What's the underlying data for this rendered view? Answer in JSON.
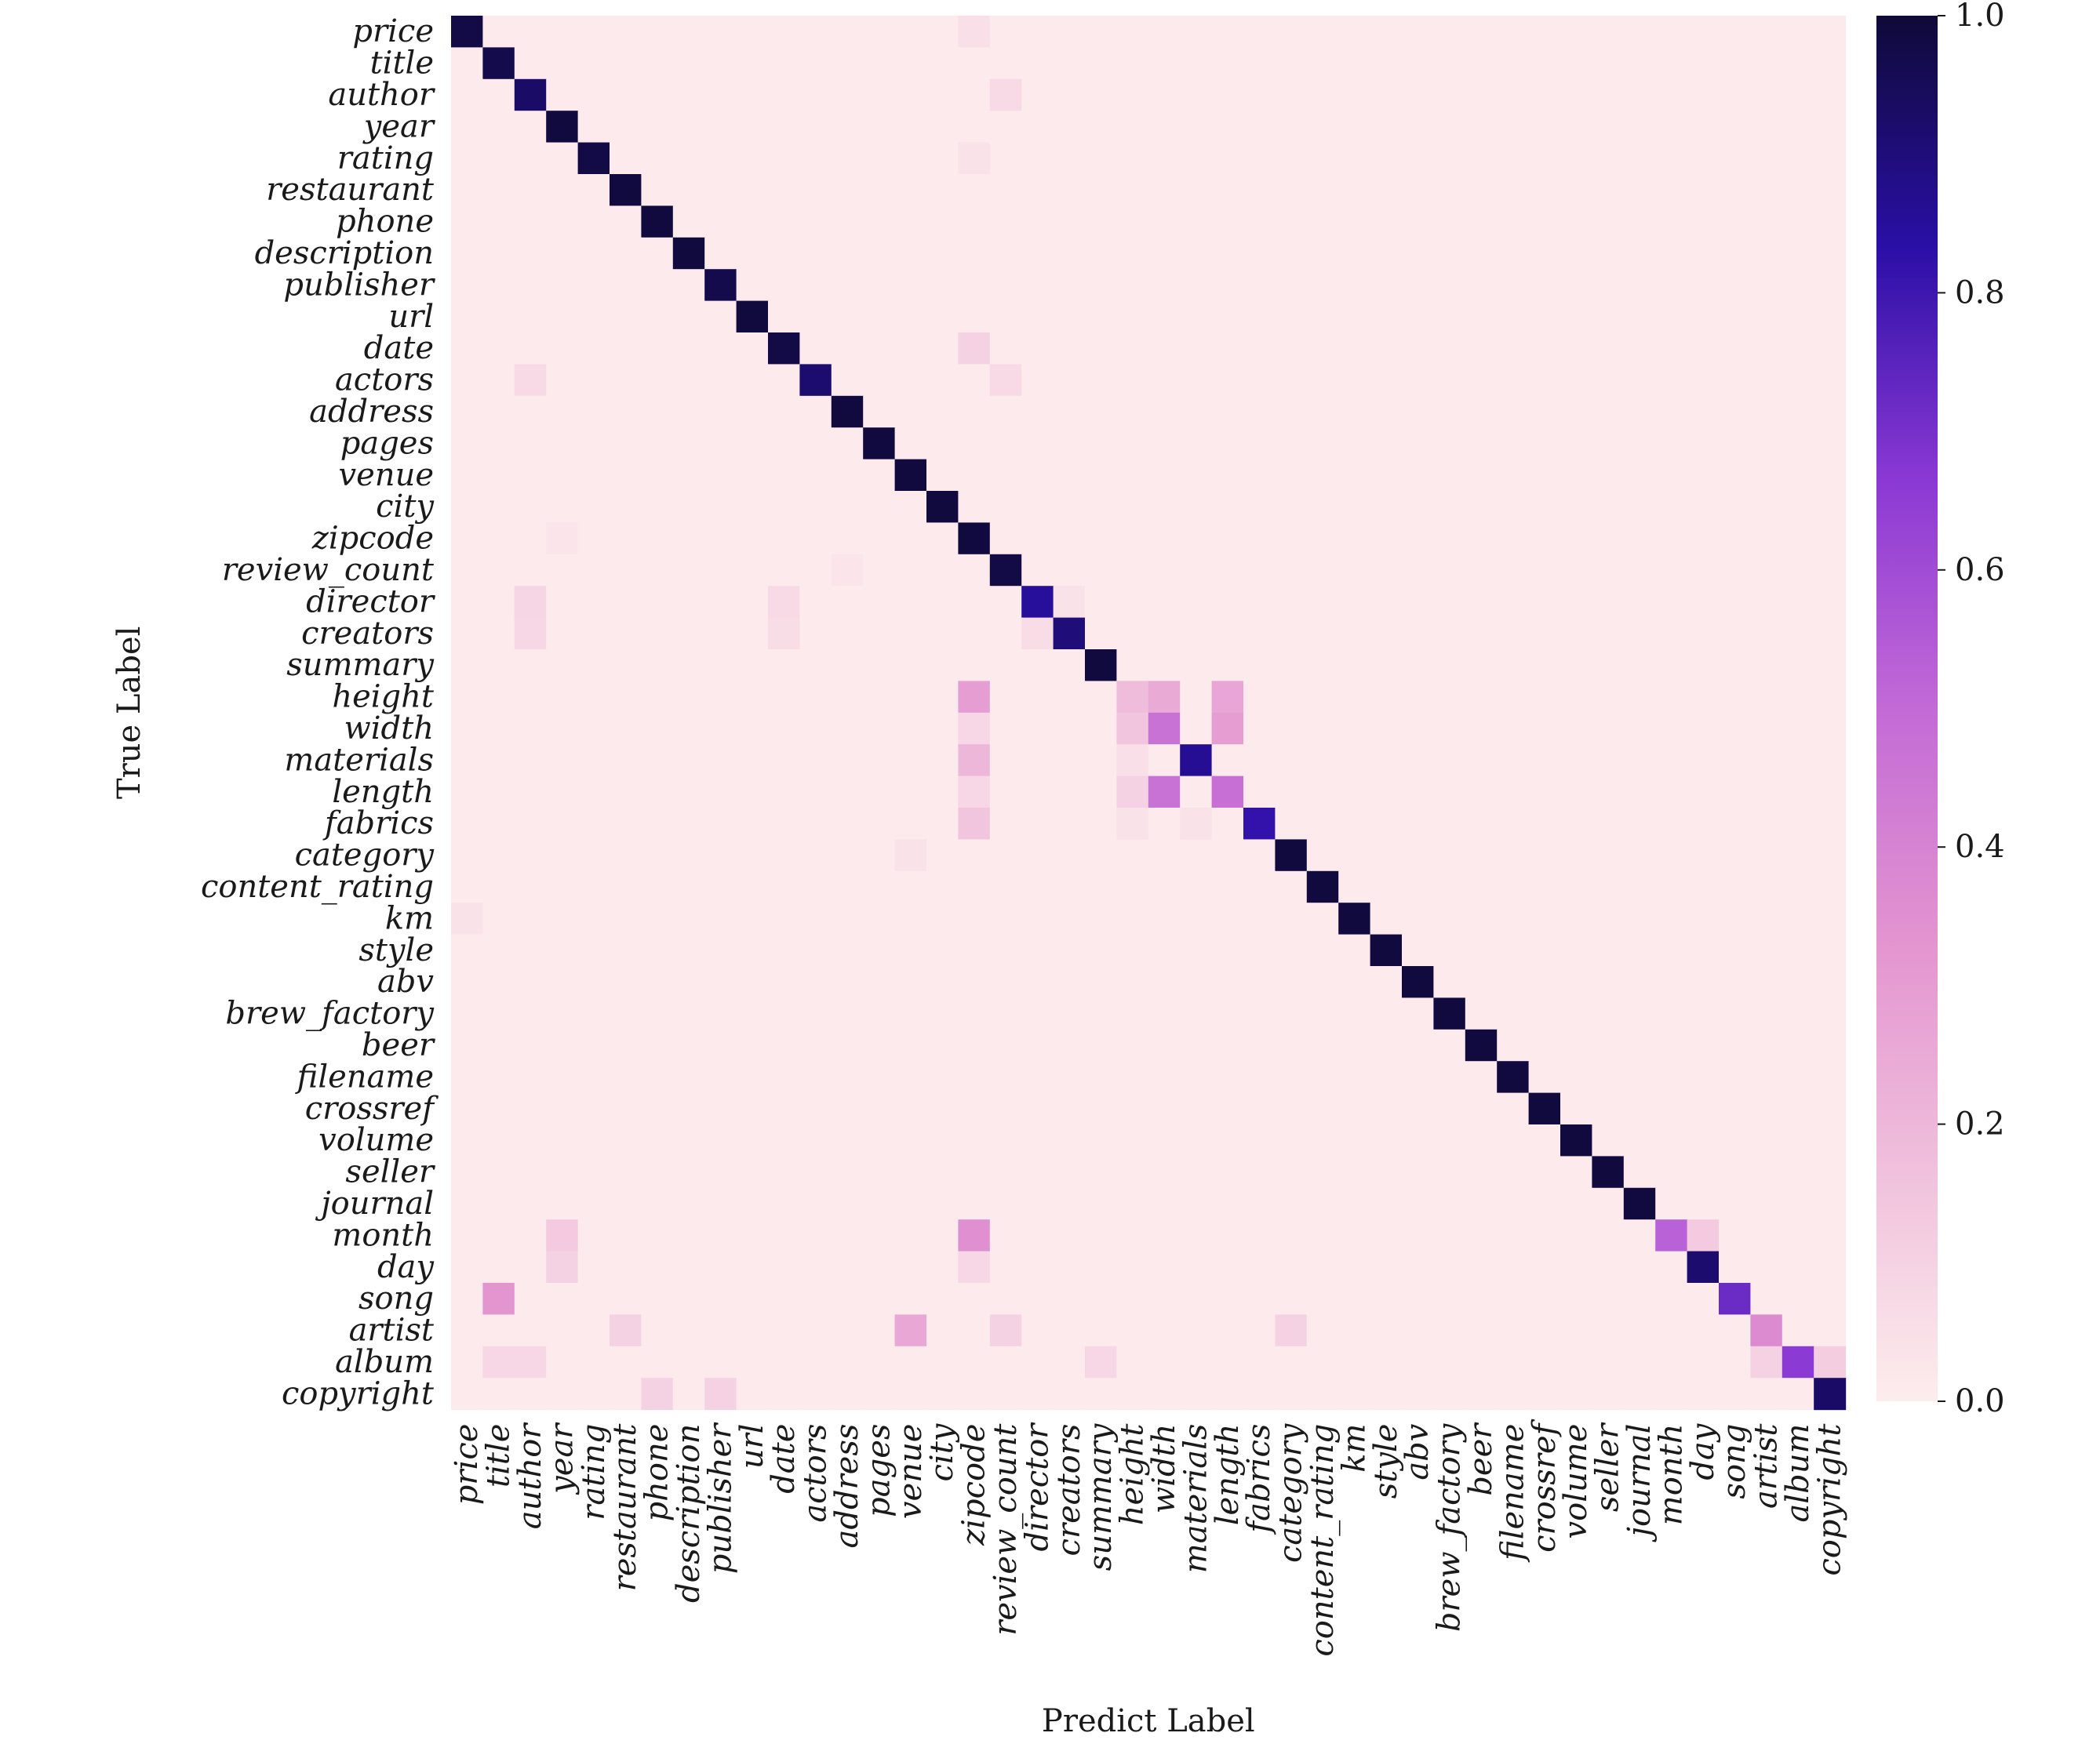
{
  "chart_data": {
    "type": "heatmap",
    "xlabel": "Predict Label",
    "ylabel": "True Label",
    "labels": [
      "price",
      "title",
      "author",
      "year",
      "rating",
      "restaurant",
      "phone",
      "description",
      "publisher",
      "url",
      "date",
      "actors",
      "address",
      "pages",
      "venue",
      "city",
      "zipcode",
      "review_count",
      "director",
      "creators",
      "summary",
      "height",
      "width",
      "materials",
      "length",
      "fabrics",
      "category",
      "content_rating",
      "km",
      "style",
      "abv",
      "brew_factory",
      "beer",
      "filename",
      "crossref",
      "volume",
      "seller",
      "journal",
      "month",
      "day",
      "song",
      "artist",
      "album",
      "copyright"
    ],
    "cells": [
      [
        0,
        0,
        0.98
      ],
      [
        1,
        1,
        0.97
      ],
      [
        2,
        2,
        0.93
      ],
      [
        3,
        3,
        0.99
      ],
      [
        4,
        4,
        0.98
      ],
      [
        5,
        5,
        0.99
      ],
      [
        6,
        6,
        0.99
      ],
      [
        7,
        7,
        0.99
      ],
      [
        8,
        8,
        0.97
      ],
      [
        9,
        9,
        0.99
      ],
      [
        10,
        10,
        0.98
      ],
      [
        11,
        11,
        0.92
      ],
      [
        12,
        12,
        0.99
      ],
      [
        13,
        13,
        0.99
      ],
      [
        14,
        14,
        0.99
      ],
      [
        15,
        15,
        0.99
      ],
      [
        16,
        16,
        0.99
      ],
      [
        17,
        17,
        0.98
      ],
      [
        18,
        18,
        0.85
      ],
      [
        19,
        19,
        0.9
      ],
      [
        20,
        20,
        0.99
      ],
      [
        21,
        21,
        0.18
      ],
      [
        22,
        22,
        0.47
      ],
      [
        23,
        23,
        0.86
      ],
      [
        24,
        24,
        0.48
      ],
      [
        25,
        25,
        0.82
      ],
      [
        26,
        26,
        0.99
      ],
      [
        27,
        27,
        0.99
      ],
      [
        28,
        28,
        0.99
      ],
      [
        29,
        29,
        0.99
      ],
      [
        30,
        30,
        0.99
      ],
      [
        31,
        31,
        0.99
      ],
      [
        32,
        32,
        0.99
      ],
      [
        33,
        33,
        0.99
      ],
      [
        34,
        34,
        0.99
      ],
      [
        35,
        35,
        0.99
      ],
      [
        36,
        36,
        0.99
      ],
      [
        37,
        37,
        0.99
      ],
      [
        38,
        38,
        0.53
      ],
      [
        39,
        39,
        0.92
      ],
      [
        40,
        40,
        0.72
      ],
      [
        41,
        41,
        0.37
      ],
      [
        42,
        42,
        0.66
      ],
      [
        43,
        43,
        0.93
      ],
      [
        0,
        16,
        0.05
      ],
      [
        2,
        17,
        0.07
      ],
      [
        4,
        16,
        0.04
      ],
      [
        10,
        16,
        0.1
      ],
      [
        11,
        2,
        0.07
      ],
      [
        11,
        17,
        0.07
      ],
      [
        16,
        3,
        0.03
      ],
      [
        17,
        12,
        0.03
      ],
      [
        18,
        2,
        0.09
      ],
      [
        18,
        10,
        0.07
      ],
      [
        18,
        19,
        0.04
      ],
      [
        19,
        2,
        0.08
      ],
      [
        19,
        10,
        0.06
      ],
      [
        19,
        18,
        0.06
      ],
      [
        21,
        16,
        0.3
      ],
      [
        21,
        21,
        0.18
      ],
      [
        21,
        22,
        0.25
      ],
      [
        21,
        24,
        0.27
      ],
      [
        22,
        16,
        0.08
      ],
      [
        22,
        21,
        0.15
      ],
      [
        22,
        24,
        0.3
      ],
      [
        23,
        16,
        0.2
      ],
      [
        23,
        21,
        0.05
      ],
      [
        24,
        16,
        0.08
      ],
      [
        24,
        21,
        0.1
      ],
      [
        24,
        22,
        0.47
      ],
      [
        25,
        16,
        0.15
      ],
      [
        25,
        21,
        0.04
      ],
      [
        25,
        23,
        0.04
      ],
      [
        26,
        14,
        0.04
      ],
      [
        28,
        0,
        0.04
      ],
      [
        38,
        3,
        0.13
      ],
      [
        38,
        16,
        0.35
      ],
      [
        38,
        39,
        0.13
      ],
      [
        39,
        3,
        0.1
      ],
      [
        39,
        16,
        0.08
      ],
      [
        40,
        1,
        0.33
      ],
      [
        41,
        5,
        0.1
      ],
      [
        41,
        14,
        0.26
      ],
      [
        41,
        17,
        0.1
      ],
      [
        41,
        26,
        0.1
      ],
      [
        42,
        1,
        0.08
      ],
      [
        42,
        2,
        0.08
      ],
      [
        42,
        20,
        0.08
      ],
      [
        42,
        41,
        0.1
      ],
      [
        42,
        43,
        0.12
      ],
      [
        43,
        6,
        0.1
      ],
      [
        43,
        8,
        0.1
      ]
    ],
    "background_value": 0.01,
    "vmin": 0.0,
    "vmax": 1.0,
    "colorbar_ticks": [
      "0.0",
      "0.2",
      "0.4",
      "0.6",
      "0.8",
      "1.0"
    ],
    "colorscale": [
      "#fdeded",
      "#f0c0dc",
      "#e394d0",
      "#c36ad6",
      "#8a38d4",
      "#2a0fa6",
      "#0f0a38"
    ],
    "grid": false
  }
}
